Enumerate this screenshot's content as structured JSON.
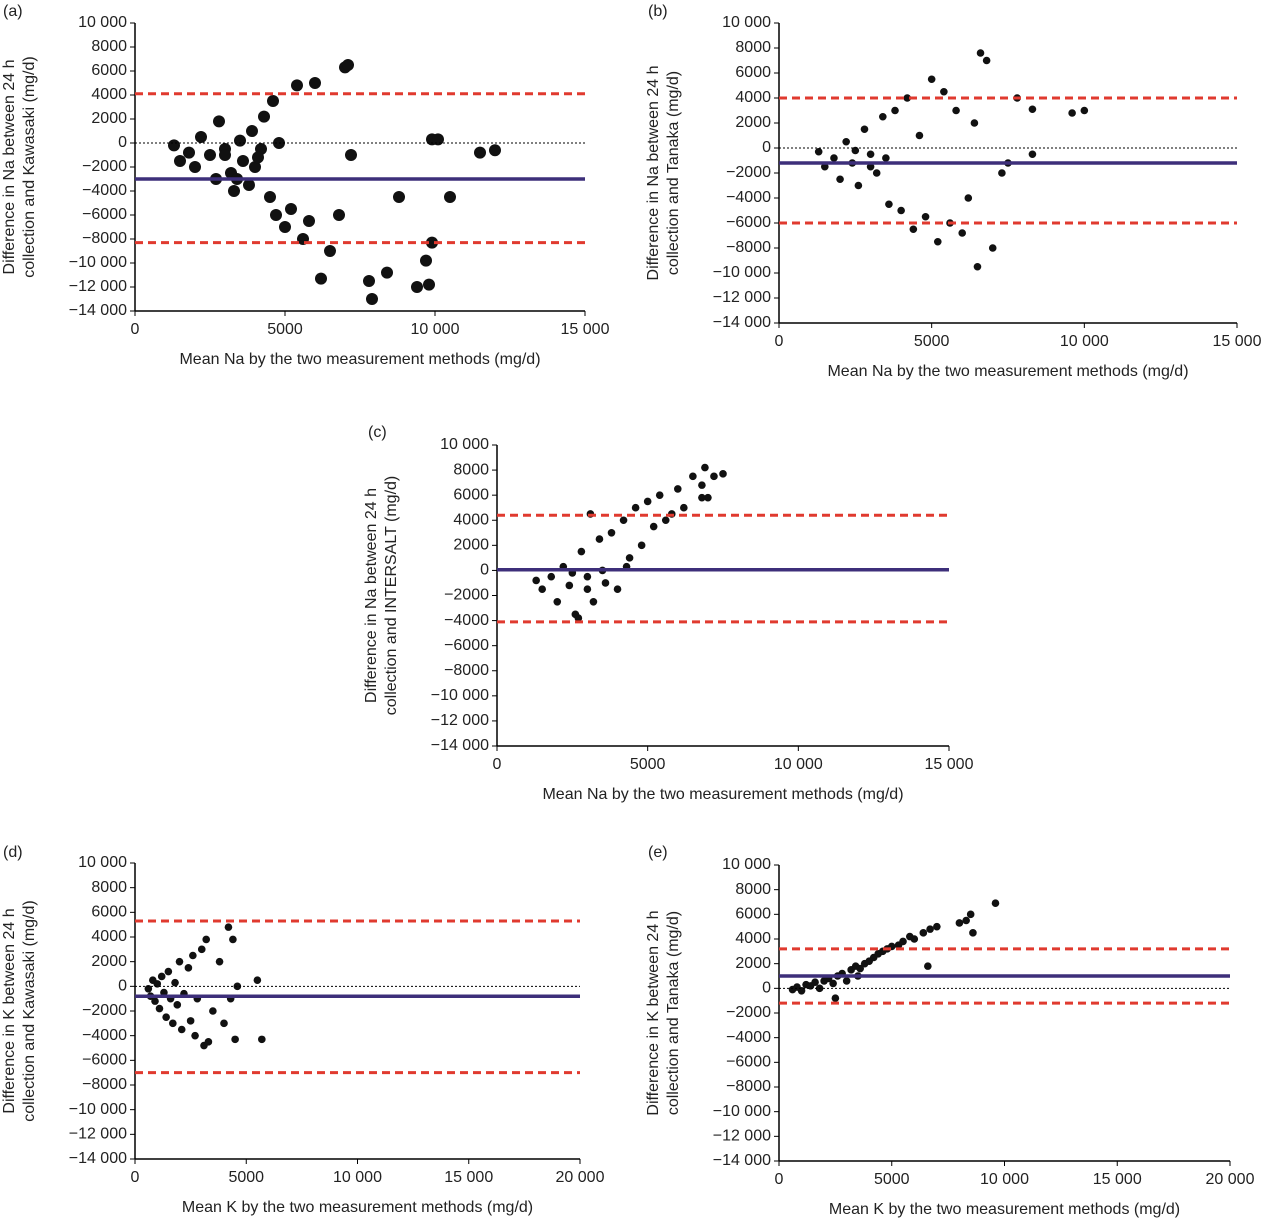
{
  "chart_data": [
    {
      "type": "scatter",
      "panel": "(a)",
      "xlabel": "Mean Na by the two measurement methods (mg/d)",
      "ylabel": [
        "Difference in Na between 24 h",
        "collection and Kawasaki (mg/d)"
      ],
      "x": [
        1300,
        1500,
        1800,
        2000,
        2200,
        2500,
        2700,
        2800,
        3000,
        3200,
        3300,
        3500,
        3600,
        3800,
        3900,
        4000,
        4200,
        4300,
        4500,
        4600,
        4700,
        4800,
        5000,
        5200,
        5400,
        5600,
        5800,
        6000,
        6200,
        6500,
        6800,
        7000,
        7100,
        7200,
        7800,
        7900,
        8400,
        8800,
        9400,
        9700,
        9800,
        9900,
        9900,
        10100,
        10500,
        11500,
        12000,
        3000,
        3400,
        4100
      ],
      "values": [
        -200,
        -1500,
        -800,
        -2000,
        500,
        -1000,
        -3000,
        1800,
        -500,
        -2500,
        -4000,
        200,
        -1500,
        -3500,
        1000,
        -2000,
        -500,
        2200,
        -4500,
        3500,
        -6000,
        0,
        -7000,
        -5500,
        4800,
        -8000,
        -6500,
        5000,
        -11300,
        -9000,
        -6000,
        6300,
        6500,
        -1000,
        -11500,
        -13000,
        -10800,
        -4500,
        -12000,
        -9800,
        -11800,
        -8300,
        300,
        300,
        -4500,
        -800,
        -600,
        -1000,
        -3000,
        -1200
      ],
      "mean": -3000,
      "limits": [
        4100,
        -8300
      ],
      "color": "#111111",
      "mean_color": "#3d2f7a",
      "limit_color": "#e03a2f",
      "xlim": [
        0,
        15000
      ],
      "xticks": [
        0,
        5000,
        {
          "value": 10000,
          "label": "10 000"
        },
        {
          "value": 15000,
          "label": "15 000"
        }
      ],
      "ylim": [
        -14000,
        10000
      ],
      "yticks": [
        {
          "value": 10000,
          "label": "10 000"
        },
        8000,
        6000,
        4000,
        2000,
        0,
        {
          "value": -2000,
          "label": "−2000"
        },
        {
          "value": -4000,
          "label": "−4000"
        },
        {
          "value": -6000,
          "label": "−6000"
        },
        {
          "value": -8000,
          "label": "−8000"
        },
        {
          "value": -10000,
          "label": "−10 000"
        },
        {
          "value": -12000,
          "label": "−12 000"
        },
        {
          "value": -14000,
          "label": "−14 000"
        }
      ]
    },
    {
      "type": "scatter",
      "panel": "(b)",
      "xlabel": "Mean Na by the two measurement methods (mg/d)",
      "ylabel": [
        "Difference in Na between 24 h",
        "collection and Tanaka (mg/d)"
      ],
      "x": [
        1300,
        1500,
        1800,
        2000,
        2200,
        2400,
        2600,
        2800,
        3000,
        3200,
        3400,
        3600,
        3800,
        4000,
        4200,
        4400,
        4600,
        4800,
        5000,
        5200,
        5400,
        5600,
        5800,
        6000,
        6200,
        6400,
        6500,
        6600,
        6800,
        7000,
        7300,
        7500,
        7800,
        8300,
        8300,
        9600,
        10000,
        2500,
        3000,
        3500
      ],
      "values": [
        -300,
        -1500,
        -800,
        -2500,
        500,
        -1200,
        -3000,
        1500,
        -500,
        -2000,
        2500,
        -4500,
        3000,
        -5000,
        4000,
        -6500,
        1000,
        -5500,
        5500,
        -7500,
        4500,
        -6000,
        3000,
        -6800,
        -4000,
        2000,
        -9500,
        7600,
        7000,
        -8000,
        -2000,
        -1200,
        4000,
        3100,
        -500,
        2800,
        3000,
        -200,
        -1500,
        -800
      ],
      "mean": -1200,
      "limits": [
        4000,
        -6000
      ],
      "color": "#111111",
      "mean_color": "#3d2f7a",
      "limit_color": "#e03a2f",
      "xlim": [
        0,
        15000
      ],
      "xticks": [
        0,
        5000,
        {
          "value": 10000,
          "label": "10 000"
        },
        {
          "value": 15000,
          "label": "15 000"
        }
      ],
      "ylim": [
        -14000,
        10000
      ],
      "yticks": [
        {
          "value": 10000,
          "label": "10 000"
        },
        8000,
        6000,
        4000,
        2000,
        0,
        {
          "value": -2000,
          "label": "−2000"
        },
        {
          "value": -4000,
          "label": "−4000"
        },
        {
          "value": -6000,
          "label": "−6000"
        },
        {
          "value": -8000,
          "label": "−8000"
        },
        {
          "value": -10000,
          "label": "−10 000"
        },
        {
          "value": -12000,
          "label": "−12 000"
        },
        {
          "value": -14000,
          "label": "−14 000"
        }
      ]
    },
    {
      "type": "scatter",
      "panel": "(c)",
      "xlabel": "Mean Na by the two measurement methods (mg/d)",
      "ylabel": [
        "Difference in Na between 24 h",
        "collection and INTERSALT (mg/d)"
      ],
      "x": [
        1300,
        1500,
        1800,
        2000,
        2200,
        2400,
        2600,
        2800,
        3000,
        3100,
        3200,
        3400,
        3600,
        3800,
        4000,
        4200,
        4400,
        4600,
        4800,
        5000,
        5200,
        5400,
        5600,
        5800,
        6000,
        6200,
        6500,
        6800,
        6900,
        7000,
        7200,
        7500,
        2500,
        3000,
        3500,
        2700,
        4300,
        6800
      ],
      "values": [
        -800,
        -1500,
        -500,
        -2500,
        300,
        -1200,
        -3500,
        1500,
        -500,
        4500,
        -2500,
        2500,
        -1000,
        3000,
        -1500,
        4000,
        1000,
        5000,
        2000,
        5500,
        3500,
        6000,
        4000,
        4500,
        6500,
        5000,
        7500,
        6800,
        8200,
        5800,
        7500,
        7700,
        -200,
        -1500,
        0,
        -3800,
        300,
        5800
      ],
      "mean": 50,
      "limits": [
        4400,
        -4100
      ],
      "color": "#111111",
      "mean_color": "#3d2f7a",
      "limit_color": "#e03a2f",
      "xlim": [
        0,
        15000
      ],
      "xticks": [
        0,
        5000,
        {
          "value": 10000,
          "label": "10 000"
        },
        {
          "value": 15000,
          "label": "15 000"
        }
      ],
      "ylim": [
        -14000,
        10000
      ],
      "yticks": [
        {
          "value": 10000,
          "label": "10 000"
        },
        8000,
        6000,
        4000,
        2000,
        0,
        {
          "value": -2000,
          "label": "−2000"
        },
        {
          "value": -4000,
          "label": "−4000"
        },
        {
          "value": -6000,
          "label": "−6000"
        },
        {
          "value": -8000,
          "label": "−8000"
        },
        {
          "value": -10000,
          "label": "−10 000"
        },
        {
          "value": -12000,
          "label": "−12 000"
        },
        {
          "value": -14000,
          "label": "−14 000"
        }
      ]
    },
    {
      "type": "scatter",
      "panel": "(d)",
      "xlabel": "Mean K by the two measurement methods (mg/d)",
      "ylabel": [
        "Difference in K between 24 h",
        "collection and Kawasaki (mg/d)"
      ],
      "x": [
        600,
        700,
        800,
        900,
        1000,
        1100,
        1200,
        1300,
        1400,
        1500,
        1600,
        1700,
        1800,
        1900,
        2000,
        2100,
        2200,
        2400,
        2500,
        2600,
        2700,
        2800,
        3000,
        3100,
        3200,
        3300,
        3500,
        3800,
        4000,
        4200,
        4400,
        4500,
        4600,
        4300,
        5500,
        5700
      ],
      "values": [
        -200,
        -800,
        500,
        -1200,
        200,
        -1800,
        800,
        -500,
        -2500,
        1200,
        -1000,
        -3000,
        300,
        -1500,
        2000,
        -3500,
        -600,
        1500,
        -2800,
        2500,
        -4000,
        -1000,
        3000,
        -4800,
        3800,
        -4500,
        -2000,
        2000,
        -3000,
        4800,
        3800,
        -4300,
        0,
        -1000,
        500,
        -4300
      ],
      "mean": -800,
      "limits": [
        5300,
        -7000
      ],
      "color": "#111111",
      "mean_color": "#3d2f7a",
      "limit_color": "#e03a2f",
      "xlim": [
        0,
        20000
      ],
      "xticks": [
        0,
        5000,
        {
          "value": 10000,
          "label": "10 000"
        },
        {
          "value": 15000,
          "label": "15 000"
        },
        {
          "value": 20000,
          "label": "20 000"
        }
      ],
      "ylim": [
        -14000,
        10000
      ],
      "yticks": [
        {
          "value": 10000,
          "label": "10 000"
        },
        8000,
        6000,
        4000,
        2000,
        0,
        {
          "value": -2000,
          "label": "−2000"
        },
        {
          "value": -4000,
          "label": "−4000"
        },
        {
          "value": -6000,
          "label": "−6000"
        },
        {
          "value": -8000,
          "label": "−8000"
        },
        {
          "value": -10000,
          "label": "−10 000"
        },
        {
          "value": -12000,
          "label": "−12 000"
        },
        {
          "value": -14000,
          "label": "−14 000"
        }
      ]
    },
    {
      "type": "scatter",
      "panel": "(e)",
      "xlabel": "Mean K by the two measurement methods (mg/d)",
      "ylabel": [
        "Difference in K between 24 h",
        "collection and Tanaka (mg/d)"
      ],
      "x": [
        600,
        800,
        1000,
        1200,
        1400,
        1600,
        1800,
        2000,
        2200,
        2400,
        2600,
        2800,
        3000,
        3200,
        3400,
        3600,
        3800,
        4000,
        4200,
        4400,
        4600,
        4800,
        5000,
        5300,
        5500,
        5800,
        6000,
        6400,
        6700,
        6600,
        7000,
        8000,
        8300,
        8500,
        8600,
        9600,
        2500,
        3500
      ],
      "values": [
        -100,
        100,
        -200,
        300,
        200,
        500,
        0,
        600,
        800,
        400,
        1000,
        1200,
        600,
        1500,
        1800,
        1600,
        2000,
        2200,
        2500,
        2800,
        3000,
        3200,
        3400,
        3500,
        3800,
        4200,
        4000,
        4500,
        4800,
        1800,
        5000,
        5300,
        5500,
        6000,
        4500,
        6900,
        -800,
        1000
      ],
      "mean": 1000,
      "limits": [
        3200,
        -1200
      ],
      "color": "#111111",
      "mean_color": "#3d2f7a",
      "limit_color": "#e03a2f",
      "xlim": [
        0,
        20000
      ],
      "xticks": [
        0,
        5000,
        {
          "value": 10000,
          "label": "10 000"
        },
        {
          "value": 15000,
          "label": "15 000"
        },
        {
          "value": 20000,
          "label": "20 000"
        }
      ],
      "ylim": [
        -14000,
        10000
      ],
      "yticks": [
        {
          "value": 10000,
          "label": "10 000"
        },
        8000,
        6000,
        4000,
        2000,
        0,
        {
          "value": -2000,
          "label": "−2000"
        },
        {
          "value": -4000,
          "label": "−4000"
        },
        {
          "value": -6000,
          "label": "−6000"
        },
        {
          "value": -8000,
          "label": "−8000"
        },
        {
          "value": -10000,
          "label": "−10 000"
        },
        {
          "value": -12000,
          "label": "−12 000"
        },
        {
          "value": -14000,
          "label": "−14 000"
        }
      ]
    }
  ]
}
